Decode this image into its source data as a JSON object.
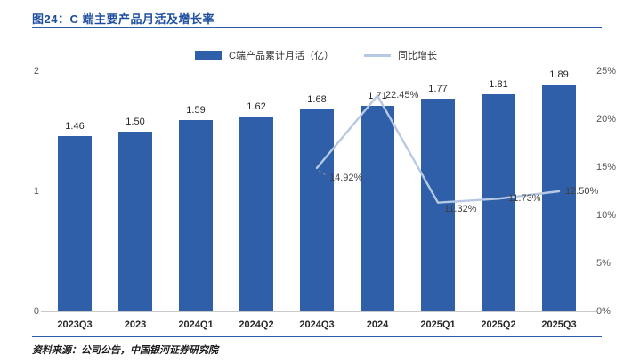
{
  "header": {
    "title": "图24：C 端主要产品月活及增长率"
  },
  "footer": {
    "source": "资料来源：公司公告，中国银河证券研究院"
  },
  "colors": {
    "bar": "#2e5fa8",
    "line": "#b7c9e2",
    "title": "#1e4ea0",
    "rule": "#2b5cab",
    "axis_text": "#595959",
    "label_text": "#262626",
    "leader": "#8c8c8c",
    "baseline": "#c9c9c9"
  },
  "chart_data": {
    "type": "bar",
    "combo": "bar+line",
    "title": "图24：C 端主要产品月活及增长率",
    "categories": [
      "2023Q3",
      "2023",
      "2024Q1",
      "2024Q2",
      "2024Q3",
      "2024",
      "2025Q1",
      "2025Q2",
      "2025Q3"
    ],
    "series": [
      {
        "name": "C端产品累计月活（亿）",
        "type": "bar",
        "yaxis": "left",
        "values": [
          1.46,
          1.5,
          1.59,
          1.62,
          1.68,
          1.71,
          1.77,
          1.81,
          1.89
        ],
        "labels": [
          "1.46",
          "1.50",
          "1.59",
          "1.62",
          "1.68",
          "1.71",
          "1.77",
          "1.81",
          "1.89"
        ]
      },
      {
        "name": "同比增长",
        "type": "line",
        "yaxis": "right",
        "points": [
          {
            "category": "2024Q3",
            "value": 14.92,
            "label": "14.92%"
          },
          {
            "category": "2024",
            "value": 22.45,
            "label": "22.45%"
          },
          {
            "category": "2025Q1",
            "value": 11.32,
            "label": "11.32%"
          },
          {
            "category": "2025Q2",
            "value": 11.73,
            "label": "11.73%"
          },
          {
            "category": "2025Q3",
            "value": 12.5,
            "label": "12.50%"
          }
        ]
      }
    ],
    "left_axis": {
      "min": 0,
      "max": 2,
      "ticks": [
        "0",
        "1",
        "2"
      ]
    },
    "right_axis": {
      "min": 0,
      "max": 25,
      "ticks": [
        "0%",
        "5%",
        "10%",
        "15%",
        "20%",
        "25%"
      ]
    },
    "legend_position": "top-center",
    "grid": false
  }
}
